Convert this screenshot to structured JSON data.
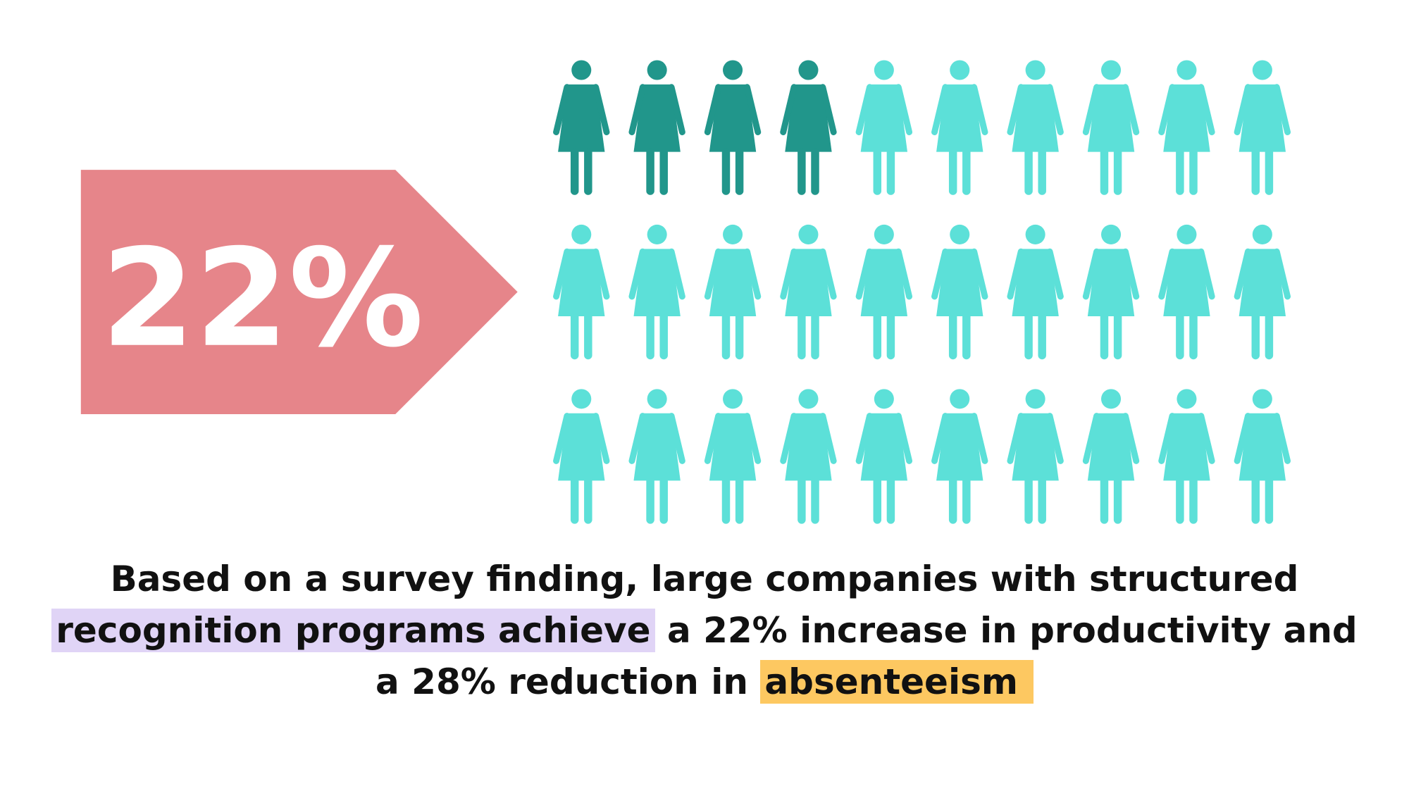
{
  "badge": {
    "label": "22%"
  },
  "caption": {
    "line1": "Based on a survey finding, large companies with structured",
    "line2_highlight": "recognition programs achieve",
    "line2_rest": "a 22% increase in productivity and",
    "line3_rest": "a 28% reduction in",
    "line3_highlight": "absenteeism"
  }
}
